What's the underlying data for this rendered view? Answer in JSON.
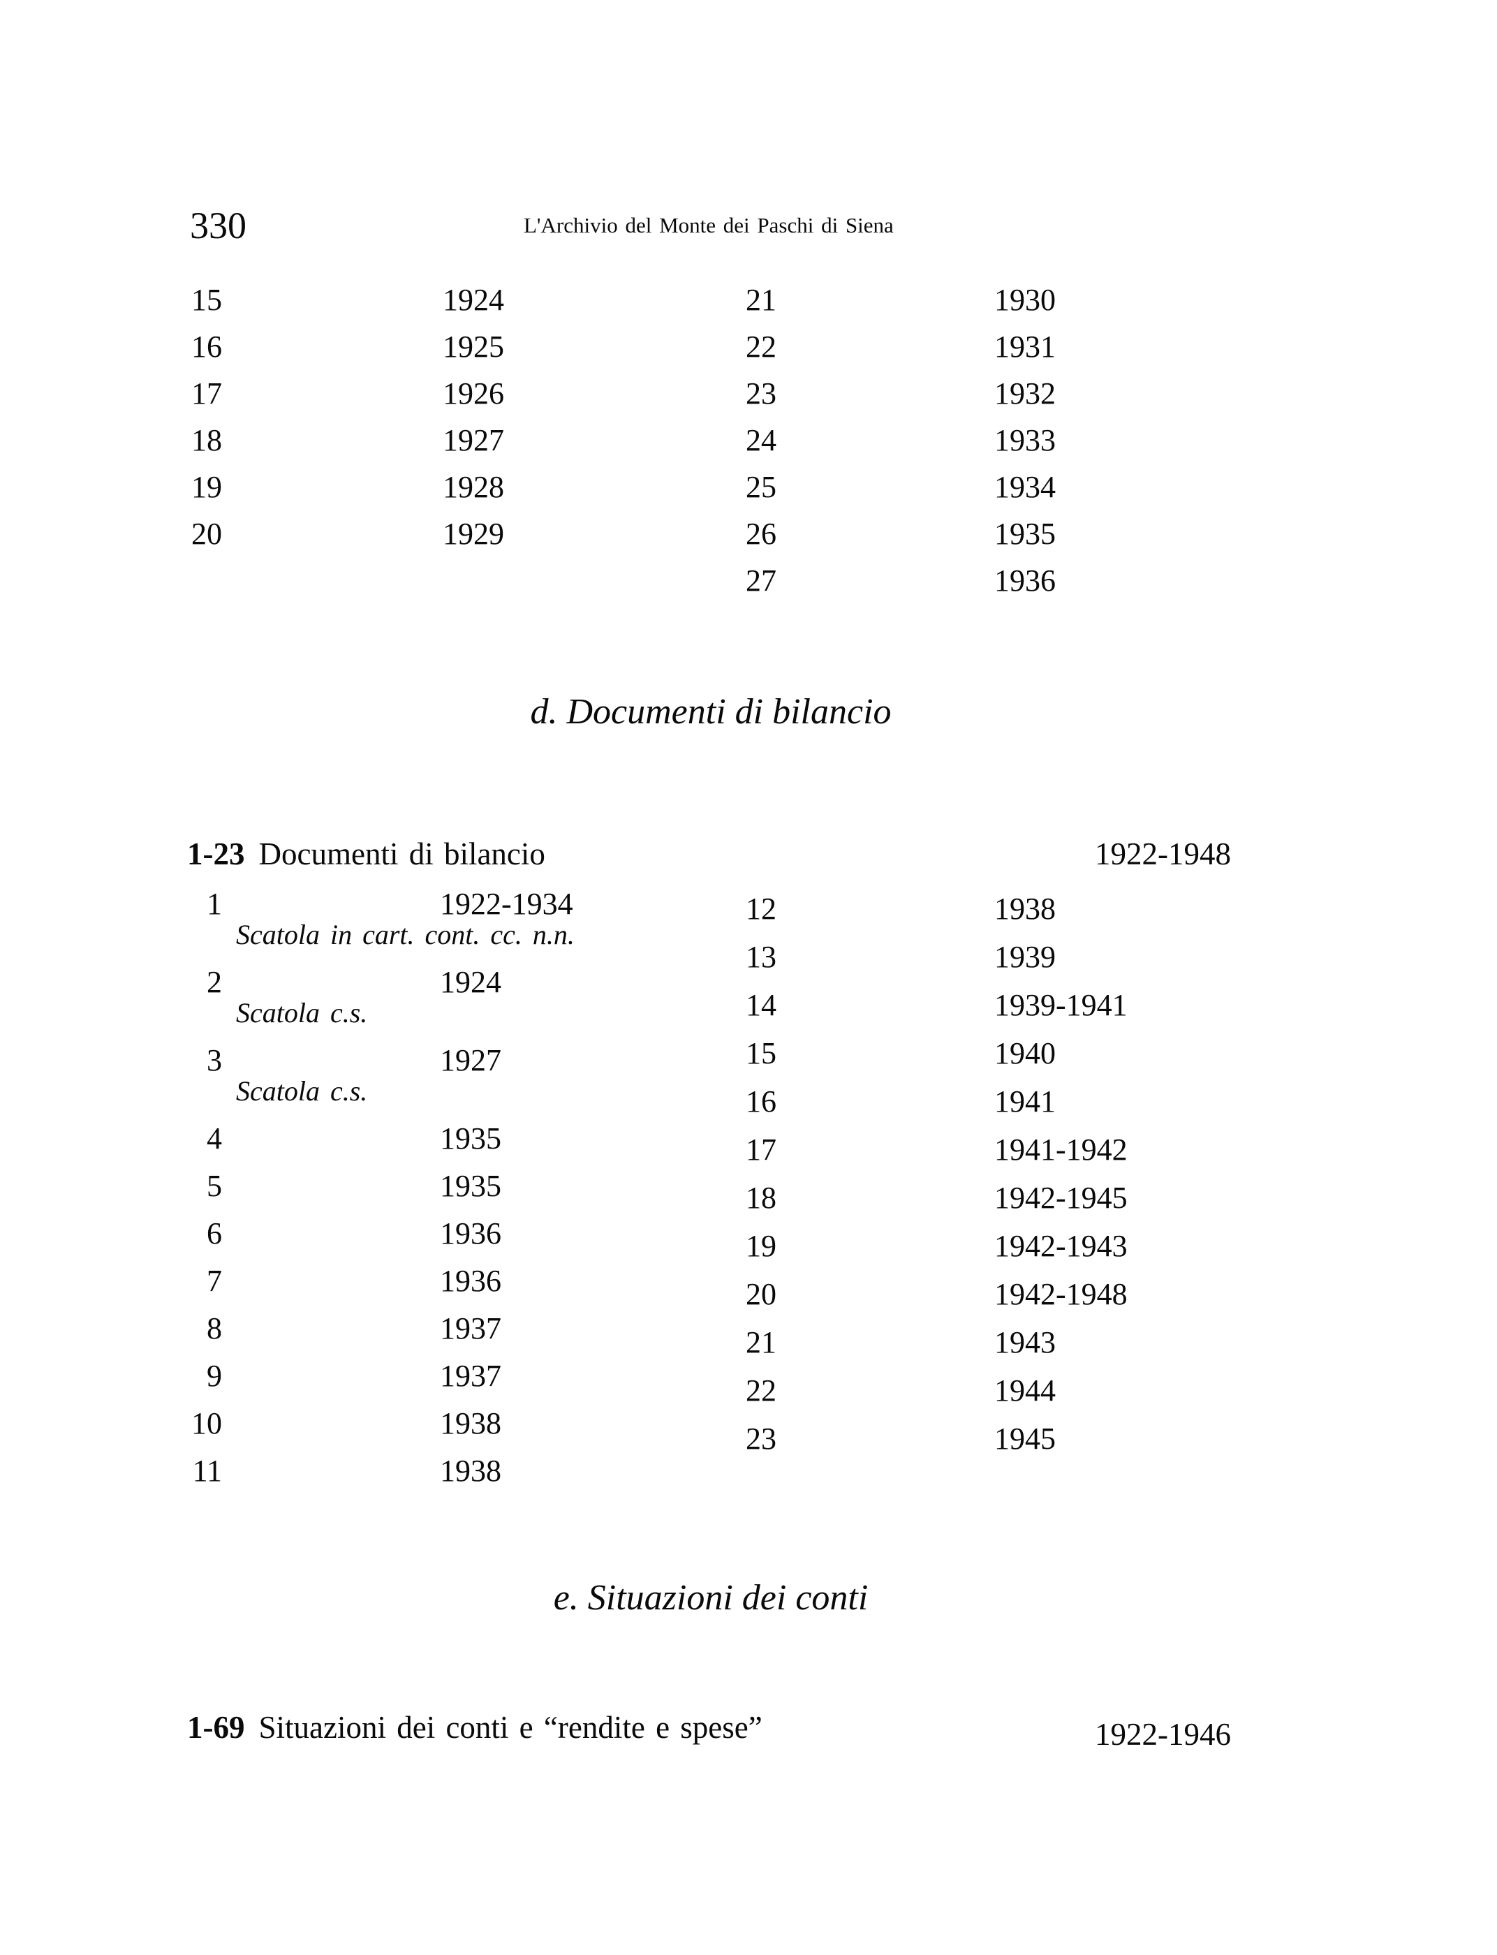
{
  "page": {
    "number": "330",
    "running_header": "L'Archivio del Monte dei Paschi di Siena"
  },
  "top_list": {
    "left": [
      {
        "n": "15",
        "years": "1924"
      },
      {
        "n": "16",
        "years": "1925"
      },
      {
        "n": "17",
        "years": "1926"
      },
      {
        "n": "18",
        "years": "1927"
      },
      {
        "n": "19",
        "years": "1928"
      },
      {
        "n": "20",
        "years": "1929"
      }
    ],
    "right": [
      {
        "n": "21",
        "years": "1930"
      },
      {
        "n": "22",
        "years": "1931"
      },
      {
        "n": "23",
        "years": "1932"
      },
      {
        "n": "24",
        "years": "1933"
      },
      {
        "n": "25",
        "years": "1934"
      },
      {
        "n": "26",
        "years": "1935"
      },
      {
        "n": "27",
        "years": "1936"
      }
    ]
  },
  "section_d": {
    "heading": "d. Documenti di bilancio",
    "series": {
      "range": "1-23",
      "title": "Documenti di bilancio",
      "dates": "1922-1948"
    },
    "left_items": [
      {
        "n": "1",
        "years": "1922-1934",
        "note": "Scatola in cart. cont. cc. n.n."
      },
      {
        "n": "2",
        "years": "1924",
        "note": "Scatola c.s."
      },
      {
        "n": "3",
        "years": "1927",
        "note": "Scatola c.s."
      },
      {
        "n": "4",
        "years": "1935"
      },
      {
        "n": "5",
        "years": "1935"
      },
      {
        "n": "6",
        "years": "1936"
      },
      {
        "n": "7",
        "years": "1936"
      },
      {
        "n": "8",
        "years": "1937"
      },
      {
        "n": "9",
        "years": "1937"
      },
      {
        "n": "10",
        "years": "1938"
      },
      {
        "n": "11",
        "years": "1938"
      }
    ],
    "right_items": [
      {
        "n": "12",
        "years": "1938"
      },
      {
        "n": "13",
        "years": "1939"
      },
      {
        "n": "14",
        "years": "1939-1941"
      },
      {
        "n": "15",
        "years": "1940"
      },
      {
        "n": "16",
        "years": "1941"
      },
      {
        "n": "17",
        "years": "1941-1942"
      },
      {
        "n": "18",
        "years": "1942-1945"
      },
      {
        "n": "19",
        "years": "1942-1943"
      },
      {
        "n": "20",
        "years": "1942-1948"
      },
      {
        "n": "21",
        "years": "1943"
      },
      {
        "n": "22",
        "years": "1944"
      },
      {
        "n": "23",
        "years": "1945"
      }
    ]
  },
  "section_e": {
    "heading": "e. Situazioni dei conti",
    "series": {
      "range": "1-69",
      "title": "Situazioni dei conti e “rendite e spese”",
      "dates": "1922-1946"
    }
  }
}
